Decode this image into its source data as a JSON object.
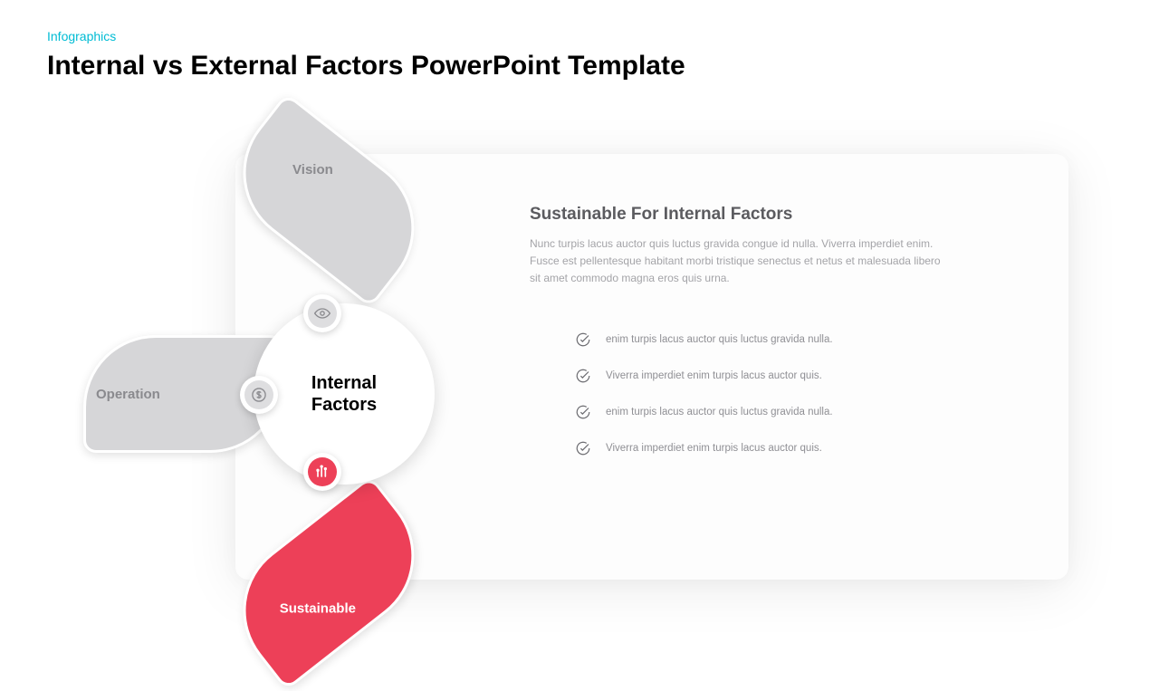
{
  "header": {
    "breadcrumb": "Infographics",
    "title": "Internal vs External Factors PowerPoint Template"
  },
  "diagram": {
    "type": "infographic",
    "center_label": "Internal\nFactors",
    "center_fontsize": 20,
    "center_color": "#000000",
    "center_bg": "#ffffff",
    "petals": [
      {
        "id": "vision",
        "label": "Vision",
        "fill": "#d6d6d8",
        "label_color": "#8a8a8e",
        "icon": "eye",
        "icon_bg": "#dedee0",
        "icon_stroke": "#8a8a8e",
        "active": false,
        "angle_deg": 38
      },
      {
        "id": "operation",
        "label": "Operation",
        "fill": "#d6d6d8",
        "label_color": "#8a8a8e",
        "icon": "dollar",
        "icon_bg": "#dedee0",
        "icon_stroke": "#8a8a8e",
        "active": false,
        "angle_deg": 0
      },
      {
        "id": "sustainable",
        "label": "Sustainable",
        "fill": "#ed4058",
        "label_color": "#ffffff",
        "icon": "chart",
        "icon_bg": "#ed4058",
        "icon_stroke": "#ffffff",
        "active": true,
        "angle_deg": -38
      }
    ],
    "petal_border": "#ffffff",
    "petal_border_width": 3,
    "shadow_color": "rgba(0,0,0,0.12)"
  },
  "content": {
    "title": "Sustainable For Internal Factors",
    "title_color": "#5b5b5f",
    "title_fontsize": 19,
    "paragraph": "Nunc turpis lacus auctor quis luctus gravida congue id nulla. Viverra imperdiet enim. Fusce est pellentesque habitant morbi tristique senectus et netus et malesuada libero sit amet commodo magna eros quis urna.",
    "paragraph_color": "#a4a4a8",
    "paragraph_fontsize": 12,
    "bullets": [
      "enim turpis lacus auctor quis luctus gravida nulla.",
      "Viverra imperdiet enim turpis lacus auctor quis.",
      "enim turpis lacus auctor quis luctus gravida nulla.",
      "Viverra imperdiet enim turpis lacus auctor quis."
    ],
    "bullet_color": "#8f8f94",
    "bullet_fontsize": 11.5,
    "check_stroke": "#6b6b70"
  },
  "card": {
    "bg": "#fdfdfd",
    "radius": 14
  },
  "page_bg": "#ffffff"
}
